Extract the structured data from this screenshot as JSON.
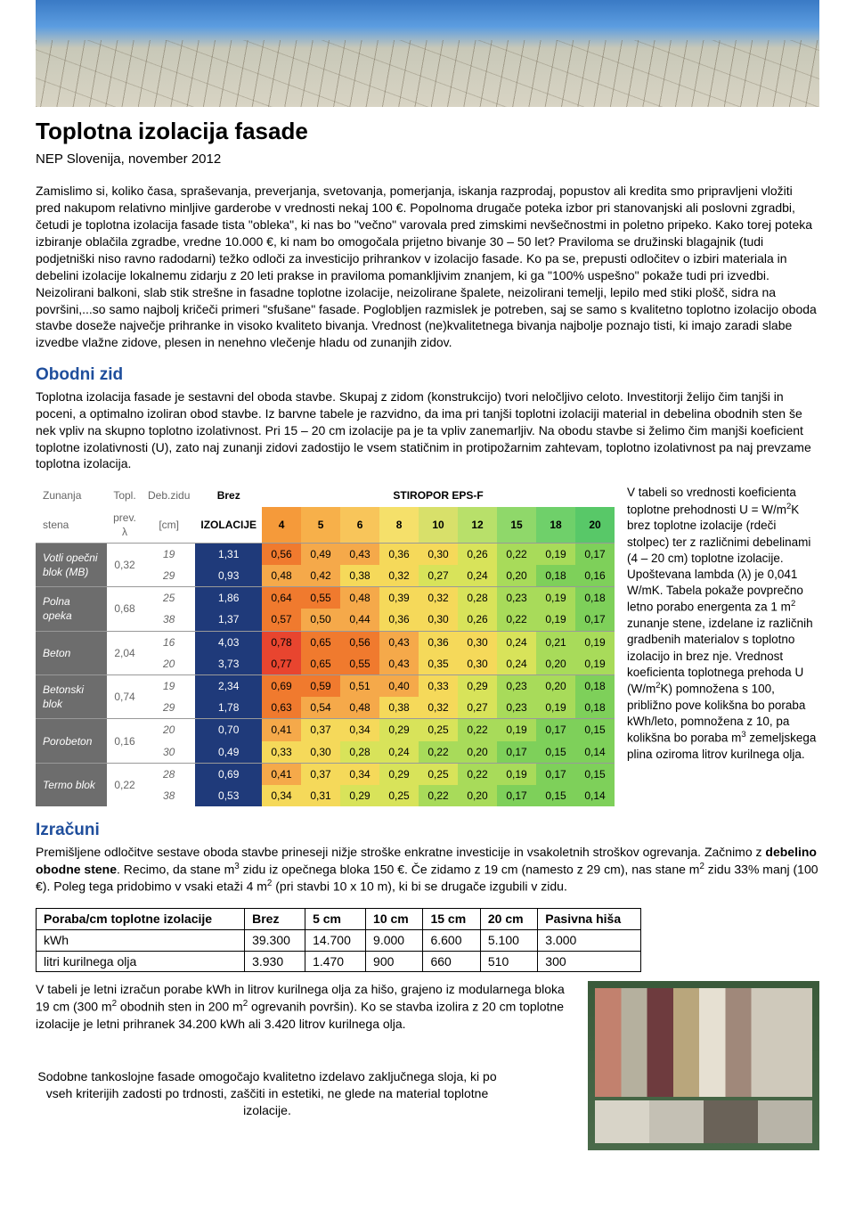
{
  "title": "Toplotna izolacija fasade",
  "subtitle": "NEP Slovenija, november 2012",
  "intro_para": "Zamislimo si, koliko časa, spraševanja, preverjanja, svetovanja, pomerjanja, iskanja razprodaj, popustov ali kredita smo pripravljeni vložiti pred nakupom relativno minljive garderobe v vrednosti nekaj 100 €. Popolnoma drugače poteka izbor pri stanovanjski ali poslovni zgradbi, četudi je toplotna izolacija fasade tista \"obleka\", ki nas bo \"večno\" varovala pred zimskimi nevšečnostmi in poletno pripeko. Kako torej poteka izbiranje oblačila zgradbe, vredne 10.000 €, ki nam bo omogočala prijetno bivanje 30 – 50 let? Praviloma se družinski blagajnik (tudi podjetniški niso ravno radodarni) težko odloči za investicijo prihrankov v izolacijo fasade. Ko pa se, prepusti odločitev o izbiri materiala in debelini izolacije lokalnemu zidarju z 20 leti prakse in praviloma pomankljivim znanjem, ki ga \"100% uspešno\" pokaže tudi pri izvedbi. Neizolirani balkoni, slab stik strešne in fasadne toplotne izolacije, neizolirane špalete, neizolirani temelji, lepilo med stiki plošč, sidra na površini,...so samo najbolj kričeči primeri \"sfušane\" fasade. Poglobljen razmislek je potreben, saj se samo s kvalitetno toplotno izolacijo oboda stavbe doseže največje prihranke in visoko kvaliteto bivanja. Vrednost (ne)kvalitetnega bivanja najbolje poznajo tisti, ki imajo zaradi slabe izvedbe vlažne zidove, plesen in nenehno vlečenje hladu od zunanjih zidov.",
  "section1_title": "Obodni zid",
  "section1_para": "Toplotna izolacija fasade je sestavni del oboda stavbe. Skupaj z zidom (konstrukcijo) tvori neločljivo celoto. Investitorji želijo čim tanjši in poceni, a optimalno izoliran obod stavbe. Iz barvne tabele je razvidno, da ima pri tanjši toplotni izolaciji material in debelina obodnih sten še nek vpliv na skupno toplotno izolativnost. Pri 15 – 20 cm izolacije pa je ta vpliv zanemarljiv. Na obodu stavbe si želimo čim manjši koeficient toplotne izolativnosti (U), zato naj zunanji zidovi zadostijo le vsem statičnim in protipožarnim zahtevam, toplotno izolativnost pa naj prevzame toplotna izolacija.",
  "heat_table": {
    "left_head": [
      "Zunanja stena",
      "Topl. prev. λ",
      "Deb.zidu [cm]"
    ],
    "mid_heads": [
      "Brez IZOLACIJE"
    ],
    "iso_head": "STIROPOR    EPS-F",
    "iso_cols": [
      "4",
      "5",
      "6",
      "8",
      "10",
      "12",
      "15",
      "18",
      "20"
    ],
    "iso_colors": [
      "#f59a3a",
      "#f7b04a",
      "#f8c55a",
      "#f5e06a",
      "#d8e06a",
      "#b8e06a",
      "#8fd86a",
      "#6fd06a",
      "#58c868"
    ],
    "materials": [
      {
        "name": "Votli opečni blok (MB)",
        "lambda": "0,32",
        "rows": [
          {
            "t": "19",
            "brez": "1,31",
            "c": [
              "0,56",
              "0,49",
              "0,43",
              "0,36",
              "0,30",
              "0,26",
              "0,22",
              "0,19",
              "0,17"
            ]
          },
          {
            "t": "29",
            "brez": "0,93",
            "c": [
              "0,48",
              "0,42",
              "0,38",
              "0,32",
              "0,27",
              "0,24",
              "0,20",
              "0,18",
              "0,16"
            ]
          }
        ]
      },
      {
        "name": "Polna opeka",
        "lambda": "0,68",
        "rows": [
          {
            "t": "25",
            "brez": "1,86",
            "c": [
              "0,64",
              "0,55",
              "0,48",
              "0,39",
              "0,32",
              "0,28",
              "0,23",
              "0,19",
              "0,18"
            ]
          },
          {
            "t": "38",
            "brez": "1,37",
            "c": [
              "0,57",
              "0,50",
              "0,44",
              "0,36",
              "0,30",
              "0,26",
              "0,22",
              "0,19",
              "0,17"
            ]
          }
        ]
      },
      {
        "name": "Beton",
        "lambda": "2,04",
        "rows": [
          {
            "t": "16",
            "brez": "4,03",
            "c": [
              "0,78",
              "0,65",
              "0,56",
              "0,43",
              "0,36",
              "0,30",
              "0,24",
              "0,21",
              "0,19"
            ]
          },
          {
            "t": "20",
            "brez": "3,73",
            "c": [
              "0,77",
              "0,65",
              "0,55",
              "0,43",
              "0,35",
              "0,30",
              "0,24",
              "0,20",
              "0,19"
            ]
          }
        ]
      },
      {
        "name": "Betonski blok",
        "lambda": "0,74",
        "rows": [
          {
            "t": "19",
            "brez": "2,34",
            "c": [
              "0,69",
              "0,59",
              "0,51",
              "0,40",
              "0,33",
              "0,29",
              "0,23",
              "0,20",
              "0,18"
            ]
          },
          {
            "t": "29",
            "brez": "1,78",
            "c": [
              "0,63",
              "0,54",
              "0,48",
              "0,38",
              "0,32",
              "0,27",
              "0,23",
              "0,19",
              "0,18"
            ]
          }
        ]
      },
      {
        "name": "Porobeton",
        "lambda": "0,16",
        "rows": [
          {
            "t": "20",
            "brez": "0,70",
            "c": [
              "0,41",
              "0,37",
              "0,34",
              "0,29",
              "0,25",
              "0,22",
              "0,19",
              "0,17",
              "0,15"
            ]
          },
          {
            "t": "30",
            "brez": "0,49",
            "c": [
              "0,33",
              "0,30",
              "0,28",
              "0,24",
              "0,22",
              "0,20",
              "0,17",
              "0,15",
              "0,14"
            ]
          }
        ]
      },
      {
        "name": "Termo blok",
        "lambda": "0,22",
        "rows": [
          {
            "t": "28",
            "brez": "0,69",
            "c": [
              "0,41",
              "0,37",
              "0,34",
              "0,29",
              "0,25",
              "0,22",
              "0,19",
              "0,17",
              "0,15"
            ]
          },
          {
            "t": "38",
            "brez": "0,53",
            "c": [
              "0,34",
              "0,31",
              "0,29",
              "0,25",
              "0,22",
              "0,20",
              "0,17",
              "0,15",
              "0,14"
            ]
          }
        ]
      }
    ],
    "cell_colors": {
      "red": "#e8452f",
      "orange": "#f07a2e",
      "lightorange": "#f5a94a",
      "yellow": "#f5d95a",
      "yellowgreen": "#d8e35a",
      "lightgreen": "#a8db5a",
      "green": "#7ed05a"
    }
  },
  "side_text_html": "V tabeli so vrednosti koeficienta toplotne prehodnosti U = W/m<span class=sup>2</span>K brez toplotne izolacije (rdeči stolpec) ter z različnimi debelinami (4 – 20 cm) toplotne izolacije. Upoštevana lambda (λ) je 0,041 W/mK. Tabela pokaže povprečno letno porabo energenta za 1 m<span class=sup>2</span> zunanje stene, izdelane iz različnih gradbenih materialov s toplotno izolacijo in brez nje. Vrednost koeficienta toplotnega prehoda U (W/m<span class=sup>2</span>K) pomnožena s 100, približno pove kolikšna bo poraba kWh/leto, pomnožena z 10, pa kolikšna bo poraba m<span class=sup>3</span> zemeljskega plina oziroma litrov kurilnega olja.",
  "section2_title": "Izračuni",
  "section2_para_html": "Premišljene odločitve sestave oboda stavbe prineseji nižje stroške enkratne investicije in vsakoletnih stroškov ogrevanja. Začnimo z <b>debelino obodne stene</b>. Recimo, da stane m<span class=sup>3</span> zidu iz opečnega bloka 150 €. Če zidamo z 19 cm (namesto z 29 cm), nas stane m<span class=sup>2</span> zidu 33% manj (100 €). Poleg tega pridobimo v vsaki etaži 4 m<span class=sup>2</span> (pri stavbi 10 x 10 m), ki bi se drugače izgubili v zidu.",
  "consumption": {
    "cols": [
      "Poraba/cm toplotne izolacije",
      "Brez",
      "5 cm",
      "10 cm",
      "15 cm",
      "20 cm",
      "Pasivna hiša"
    ],
    "rows": [
      [
        "kWh",
        "39.300",
        "14.700",
        "9.000",
        "6.600",
        "5.100",
        "3.000"
      ],
      [
        "litri kurilnega olja",
        "3.930",
        "1.470",
        "900",
        "660",
        "510",
        "300"
      ]
    ]
  },
  "footer_para_html": "V tabeli je letni izračun porabe kWh in litrov kurilnega olja za hišo, grajeno iz modularnega bloka 19 cm (300 m<span class=sup>2</span> obodnih sten in 200 m<span class=sup>2</span> ogrevanih površin). Ko se stavba izolira z 20 cm toplotne izolacije je letni prihranek 34.200 kWh ali 3.420 litrov kurilnega olja.",
  "footer_caption": "Sodobne tankoslojne fasade omogočajo kvalitetno izdelavo zaključnega sloja, ki po vseh kriterijih zadosti po trdnosti, zaščiti in estetiki, ne glede na material toplotne izolacije."
}
